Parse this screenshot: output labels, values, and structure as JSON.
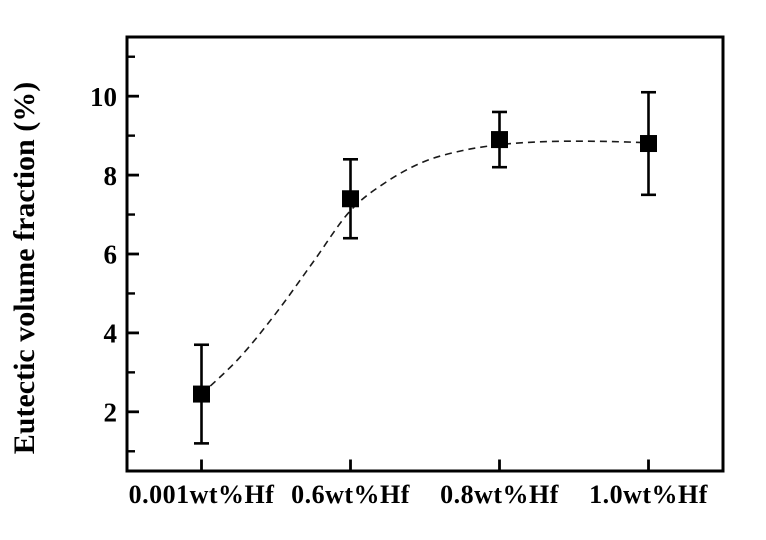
{
  "chart_data": {
    "type": "scatter",
    "title": "",
    "xlabel": "",
    "ylabel": "Eutectic volume fraction (%)",
    "categories": [
      "0.001wt%Hf",
      "0.6wt%Hf",
      "0.8wt%Hf",
      "1.0wt%Hf"
    ],
    "series": [
      {
        "name": "eutectic-volume-fraction",
        "values": [
          2.45,
          7.4,
          8.9,
          8.8
        ],
        "error_plus": [
          1.25,
          1.0,
          0.7,
          1.3
        ],
        "error_minus": [
          1.25,
          1.0,
          0.7,
          1.3
        ],
        "marker": "filled-square",
        "color": "#000000"
      }
    ],
    "trend_line": {
      "style": "dashed",
      "color": "#1a1a1a",
      "points": [
        [
          0,
          2.45
        ],
        [
          0.25,
          3.35
        ],
        [
          0.5,
          4.5
        ],
        [
          0.75,
          5.8
        ],
        [
          1.0,
          7.1
        ],
        [
          1.25,
          7.85
        ],
        [
          1.5,
          8.35
        ],
        [
          1.75,
          8.62
        ],
        [
          2.0,
          8.77
        ],
        [
          2.25,
          8.84
        ],
        [
          2.5,
          8.86
        ],
        [
          2.75,
          8.85
        ],
        [
          3.0,
          8.82
        ]
      ]
    },
    "y_axis": {
      "ticks": [
        2,
        4,
        6,
        8,
        10
      ],
      "tick_labels": [
        "2",
        "4",
        "6",
        "8",
        "10"
      ],
      "minor_ticks": [
        1,
        3,
        5,
        7,
        9,
        11
      ],
      "ylim": [
        0.5,
        11.5
      ]
    },
    "x_axis": {
      "tick_positions": [
        0,
        1,
        2,
        3
      ]
    },
    "grid": false,
    "legend": false,
    "background": "#ffffff",
    "frame_color": "#000000"
  }
}
